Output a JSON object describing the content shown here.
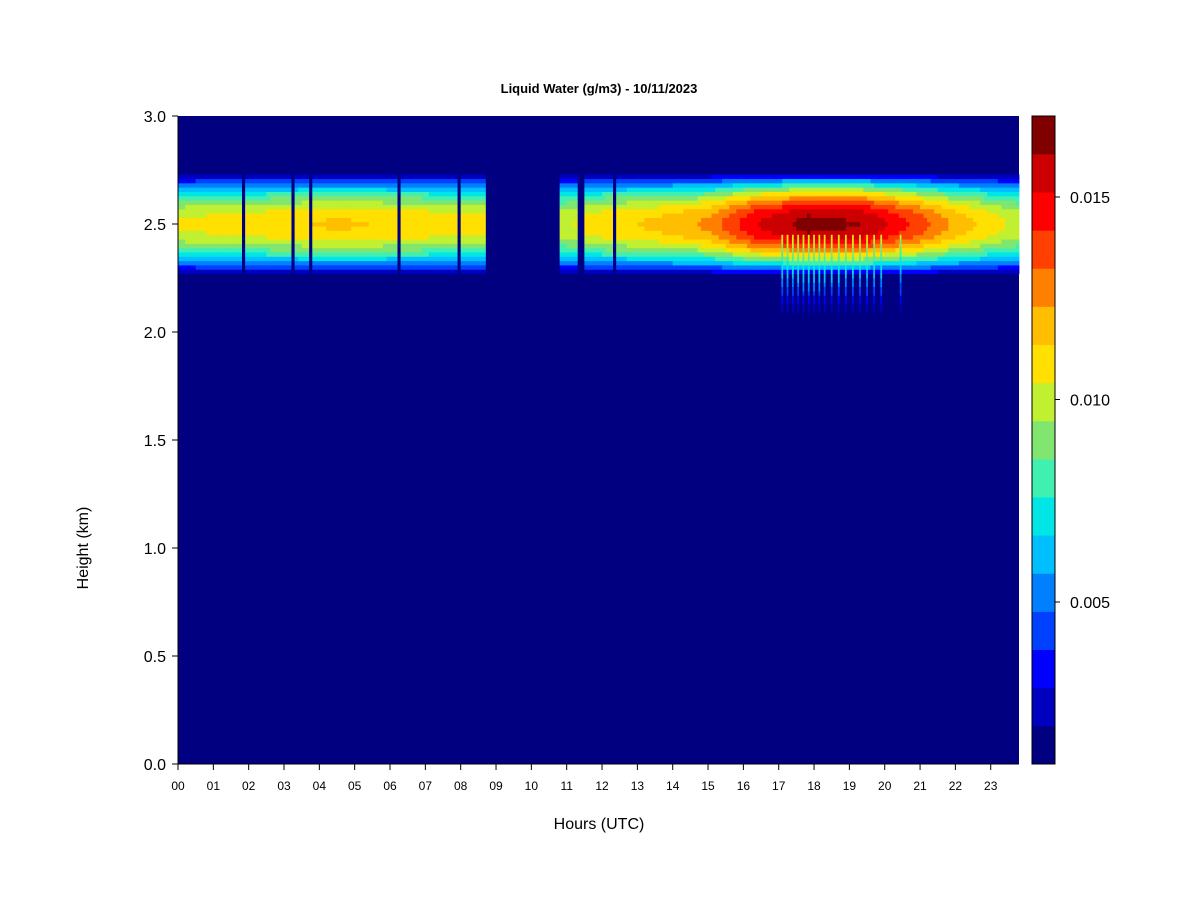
{
  "chart_data": {
    "type": "heatmap",
    "title": "Liquid Water (g/m3) - 10/11/2023",
    "xlabel": "Hours (UTC)",
    "ylabel": "Height (km)",
    "xlim": [
      0,
      23.8
    ],
    "ylim": [
      0,
      3.0
    ],
    "x_ticks": [
      "00",
      "01",
      "02",
      "03",
      "04",
      "05",
      "06",
      "07",
      "08",
      "09",
      "10",
      "11",
      "12",
      "13",
      "14",
      "15",
      "16",
      "17",
      "18",
      "19",
      "20",
      "21",
      "22",
      "23"
    ],
    "y_ticks": [
      "0.0",
      "0.5",
      "1.0",
      "1.5",
      "2.0",
      "2.5",
      "3.0"
    ],
    "background_value": 0.0,
    "cloud_layer": {
      "center_km": 2.5,
      "half_width_km": 0.25,
      "segments_hours": [
        [
          0.0,
          8.65
        ],
        [
          10.75,
          23.8
        ]
      ],
      "gaps_hours": [
        [
          1.85,
          1.9
        ],
        [
          2.3,
          2.35
        ],
        [
          2.6,
          2.65
        ],
        [
          2.8,
          2.85
        ],
        [
          3.2,
          3.3
        ],
        [
          3.75,
          3.8
        ],
        [
          5.65,
          5.7
        ],
        [
          6.2,
          6.25
        ],
        [
          7.15,
          7.2
        ],
        [
          7.55,
          7.6
        ],
        [
          7.9,
          7.95
        ],
        [
          8.35,
          8.4
        ],
        [
          11.25,
          11.5
        ],
        [
          12.3,
          12.4
        ]
      ],
      "peak_profile": [
        {
          "hour": 0.0,
          "peak": 0.0105
        },
        {
          "hour": 4.5,
          "peak": 0.0115
        },
        {
          "hour": 8.6,
          "peak": 0.0108
        },
        {
          "hour": 10.8,
          "peak": 0.01
        },
        {
          "hour": 11.8,
          "peak": 0.011
        },
        {
          "hour": 13.5,
          "peak": 0.0115
        },
        {
          "hour": 15.0,
          "peak": 0.0125
        },
        {
          "hour": 16.3,
          "peak": 0.015
        },
        {
          "hour": 17.8,
          "peak": 0.0165
        },
        {
          "hour": 19.5,
          "peak": 0.016
        },
        {
          "hour": 20.8,
          "peak": 0.014
        },
        {
          "hour": 22.0,
          "peak": 0.012
        },
        {
          "hour": 23.8,
          "peak": 0.01
        }
      ],
      "drizzle_hours": [
        17.1,
        17.25,
        17.4,
        17.55,
        17.7,
        17.85,
        18.0,
        18.15,
        18.3,
        18.5,
        18.7,
        18.9,
        19.1,
        19.3,
        19.5,
        19.7,
        19.9,
        20.45
      ],
      "drizzle_bottom_km": 2.05
    },
    "colorbar": {
      "min": 0.001,
      "max": 0.017,
      "ticks": [
        "0.005",
        "0.010",
        "0.015"
      ],
      "tick_values": [
        0.005,
        0.01,
        0.015
      ],
      "colors": [
        "#000080",
        "#0000BF",
        "#0000FF",
        "#0040FF",
        "#0080FF",
        "#00BFFF",
        "#00E6E6",
        "#40F0B0",
        "#80E670",
        "#C0F030",
        "#FFE000",
        "#FFBF00",
        "#FF8000",
        "#FF4000",
        "#FF0000",
        "#CC0000",
        "#800000"
      ]
    }
  }
}
